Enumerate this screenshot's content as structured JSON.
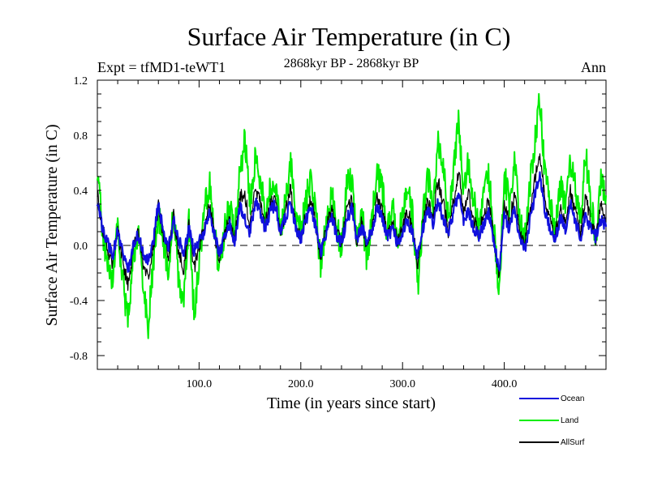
{
  "chart_data": {
    "type": "line",
    "title": "Surface Air Temperature (in C)",
    "experiment_label": "Expt = tfMD1-teWT1",
    "period_label": "2868kyr BP - 2868kyr BP",
    "season_label": "Ann",
    "xlabel": "Time (in years since start)",
    "ylabel": "Surface Air Temperature (in C)",
    "xlim": [
      0,
      500
    ],
    "ylim": [
      -0.9,
      1.2
    ],
    "x_ticks": [
      100,
      200,
      300,
      400
    ],
    "x_tick_labels": [
      "100.0",
      "200.0",
      "300.0",
      "400.0"
    ],
    "y_ticks": [
      -0.8,
      -0.4,
      0.0,
      0.4,
      0.8,
      1.2
    ],
    "y_tick_labels": [
      "-0.8",
      "-0.4",
      "0.0",
      "0.4",
      "0.8",
      "1.2"
    ],
    "reference_line": 0.0,
    "legend_position": "bottom-right",
    "series": [
      {
        "name": "Ocean",
        "color": "#1010dd",
        "x": [
          0,
          5,
          10,
          15,
          20,
          25,
          30,
          35,
          40,
          45,
          50,
          55,
          60,
          65,
          70,
          75,
          80,
          85,
          90,
          95,
          100,
          105,
          110,
          115,
          120,
          125,
          130,
          135,
          140,
          145,
          150,
          155,
          160,
          165,
          170,
          175,
          180,
          185,
          190,
          195,
          200,
          205,
          210,
          215,
          220,
          225,
          230,
          235,
          240,
          245,
          250,
          255,
          260,
          265,
          270,
          275,
          280,
          285,
          290,
          295,
          300,
          305,
          310,
          315,
          320,
          325,
          330,
          335,
          340,
          345,
          350,
          355,
          360,
          365,
          370,
          375,
          380,
          385,
          390,
          395,
          400,
          405,
          410,
          415,
          420,
          425,
          430,
          435,
          440,
          445,
          450,
          455,
          460,
          465,
          470,
          475,
          480,
          485,
          490,
          495,
          500
        ],
        "values": [
          0.32,
          0.12,
          0.02,
          -0.08,
          0.1,
          -0.06,
          -0.18,
          -0.02,
          0.08,
          -0.05,
          -0.12,
          0.02,
          0.32,
          0.08,
          -0.02,
          0.18,
          0.04,
          -0.06,
          0.12,
          -0.04,
          0.02,
          0.1,
          0.22,
          0.08,
          -0.06,
          0.05,
          0.15,
          0.02,
          0.28,
          0.2,
          0.08,
          0.32,
          0.24,
          0.12,
          0.25,
          0.3,
          0.1,
          0.2,
          0.32,
          0.12,
          0.05,
          0.18,
          0.28,
          0.12,
          -0.05,
          0.1,
          0.22,
          0.08,
          0.02,
          0.18,
          0.28,
          0.04,
          0.14,
          0.02,
          0.12,
          0.28,
          0.2,
          0.06,
          0.12,
          0.02,
          0.1,
          0.18,
          0.08,
          -0.08,
          0.12,
          0.26,
          0.16,
          0.32,
          0.2,
          0.08,
          0.24,
          0.38,
          0.18,
          0.26,
          0.12,
          0.06,
          0.16,
          0.24,
          0.0,
          -0.18,
          0.22,
          0.12,
          0.26,
          0.06,
          -0.04,
          0.16,
          0.36,
          0.52,
          0.24,
          0.12,
          0.04,
          0.2,
          0.1,
          0.3,
          0.16,
          0.06,
          0.22,
          0.12,
          0.06,
          0.2,
          0.14
        ]
      },
      {
        "name": "Land",
        "color": "#00ee00",
        "x": [
          0,
          5,
          10,
          15,
          20,
          25,
          30,
          35,
          40,
          45,
          50,
          55,
          60,
          65,
          70,
          75,
          80,
          85,
          90,
          95,
          100,
          105,
          110,
          115,
          120,
          125,
          130,
          135,
          140,
          145,
          150,
          155,
          160,
          165,
          170,
          175,
          180,
          185,
          190,
          195,
          200,
          205,
          210,
          215,
          220,
          225,
          230,
          235,
          240,
          245,
          250,
          255,
          260,
          265,
          270,
          275,
          280,
          285,
          290,
          295,
          300,
          305,
          310,
          315,
          320,
          325,
          330,
          335,
          340,
          345,
          350,
          355,
          360,
          365,
          370,
          375,
          380,
          385,
          390,
          395,
          400,
          405,
          410,
          415,
          420,
          425,
          430,
          435,
          440,
          445,
          450,
          455,
          460,
          465,
          470,
          475,
          480,
          485,
          490,
          495,
          500
        ],
        "values": [
          0.58,
          0.1,
          -0.12,
          -0.28,
          0.15,
          -0.25,
          -0.56,
          -0.1,
          0.12,
          -0.3,
          -0.6,
          -0.1,
          0.22,
          0.02,
          -0.2,
          0.3,
          -0.3,
          -0.44,
          0.18,
          -0.5,
          -0.12,
          0.24,
          0.46,
          0.12,
          -0.2,
          0.12,
          0.3,
          0.1,
          0.52,
          0.78,
          0.28,
          0.62,
          0.5,
          0.22,
          0.4,
          0.44,
          0.08,
          0.32,
          0.62,
          0.2,
          0.1,
          0.32,
          0.5,
          0.2,
          -0.18,
          0.18,
          0.38,
          0.14,
          -0.02,
          0.44,
          0.5,
          0.02,
          0.24,
          -0.1,
          0.2,
          0.5,
          0.42,
          0.08,
          0.3,
          0.05,
          0.2,
          0.4,
          0.22,
          -0.32,
          0.2,
          0.52,
          0.3,
          0.78,
          0.56,
          0.18,
          0.5,
          0.92,
          0.4,
          0.62,
          0.32,
          0.12,
          0.4,
          0.5,
          0.12,
          -0.36,
          0.52,
          0.3,
          0.62,
          0.2,
          0.05,
          0.42,
          0.76,
          1.05,
          0.5,
          0.28,
          0.1,
          0.44,
          0.26,
          0.62,
          0.42,
          0.18,
          0.66,
          0.32,
          0.04,
          0.5,
          0.36
        ]
      },
      {
        "name": "AllSurf",
        "color": "#000000",
        "x": [
          0,
          5,
          10,
          15,
          20,
          25,
          30,
          35,
          40,
          45,
          50,
          55,
          60,
          65,
          70,
          75,
          80,
          85,
          90,
          95,
          100,
          105,
          110,
          115,
          120,
          125,
          130,
          135,
          140,
          145,
          150,
          155,
          160,
          165,
          170,
          175,
          180,
          185,
          190,
          195,
          200,
          205,
          210,
          215,
          220,
          225,
          230,
          235,
          240,
          245,
          250,
          255,
          260,
          265,
          270,
          275,
          280,
          285,
          290,
          295,
          300,
          305,
          310,
          315,
          320,
          325,
          330,
          335,
          340,
          345,
          350,
          355,
          360,
          365,
          370,
          375,
          380,
          385,
          390,
          395,
          400,
          405,
          410,
          415,
          420,
          425,
          430,
          435,
          440,
          445,
          450,
          455,
          460,
          465,
          470,
          475,
          480,
          485,
          490,
          495,
          500
        ],
        "values": [
          0.38,
          0.12,
          -0.02,
          -0.13,
          0.11,
          -0.11,
          -0.29,
          -0.04,
          0.09,
          -0.12,
          -0.25,
          -0.02,
          0.29,
          0.06,
          -0.07,
          0.21,
          -0.06,
          -0.17,
          0.14,
          -0.17,
          -0.02,
          0.14,
          0.29,
          0.09,
          -0.1,
          0.07,
          0.19,
          0.04,
          0.35,
          0.38,
          0.14,
          0.41,
          0.32,
          0.15,
          0.29,
          0.34,
          0.09,
          0.24,
          0.41,
          0.14,
          0.06,
          0.22,
          0.35,
          0.14,
          -0.09,
          0.12,
          0.27,
          0.1,
          0.01,
          0.26,
          0.35,
          0.03,
          0.17,
          -0.02,
          0.14,
          0.35,
          0.27,
          0.07,
          0.17,
          0.03,
          0.13,
          0.25,
          0.12,
          -0.15,
          0.14,
          0.34,
          0.2,
          0.46,
          0.31,
          0.11,
          0.32,
          0.54,
          0.25,
          0.37,
          0.18,
          0.08,
          0.23,
          0.32,
          0.04,
          -0.23,
          0.31,
          0.17,
          0.37,
          0.1,
          -0.01,
          0.24,
          0.48,
          0.68,
          0.32,
          0.17,
          0.06,
          0.27,
          0.15,
          0.39,
          0.24,
          0.1,
          0.35,
          0.18,
          0.05,
          0.29,
          0.2
        ]
      }
    ]
  }
}
